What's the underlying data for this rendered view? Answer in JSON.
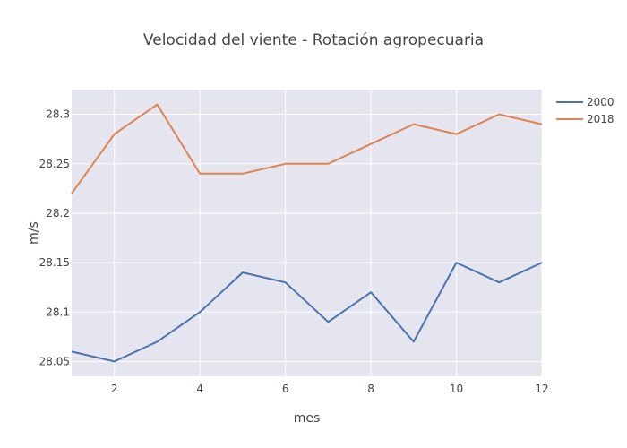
{
  "chart_data": {
    "type": "line",
    "title": "Velocidad del viente - Rotación agropecuaria",
    "xlabel": "mes",
    "ylabel": "m/s",
    "x": [
      1,
      2,
      3,
      4,
      5,
      6,
      7,
      8,
      9,
      10,
      11,
      12
    ],
    "xlim": [
      1,
      12
    ],
    "ylim": [
      28.035,
      28.325
    ],
    "xticks": [
      2,
      4,
      6,
      8,
      10,
      12
    ],
    "xtick_labels": [
      "2",
      "4",
      "6",
      "8",
      "10",
      "12"
    ],
    "yticks": [
      28.05,
      28.1,
      28.15,
      28.2,
      28.25,
      28.3
    ],
    "ytick_labels": [
      "28.05",
      "28.1",
      "28.15",
      "28.2",
      "28.25",
      "28.3"
    ],
    "grid": true,
    "legend_position": "top-right",
    "series": [
      {
        "name": "2000",
        "color": "#4c72b0",
        "values": [
          28.06,
          28.05,
          28.07,
          28.1,
          28.14,
          28.13,
          28.09,
          28.12,
          28.07,
          28.15,
          28.13,
          28.15
        ]
      },
      {
        "name": "2018",
        "color": "#dd8452",
        "values": [
          28.22,
          28.28,
          28.31,
          28.24,
          28.24,
          28.25,
          28.25,
          28.27,
          28.29,
          28.28,
          28.3,
          28.29
        ]
      }
    ]
  },
  "colors": {
    "plot_background": "#e5e5f0",
    "gridline": "#ffffff",
    "text": "#444444"
  }
}
